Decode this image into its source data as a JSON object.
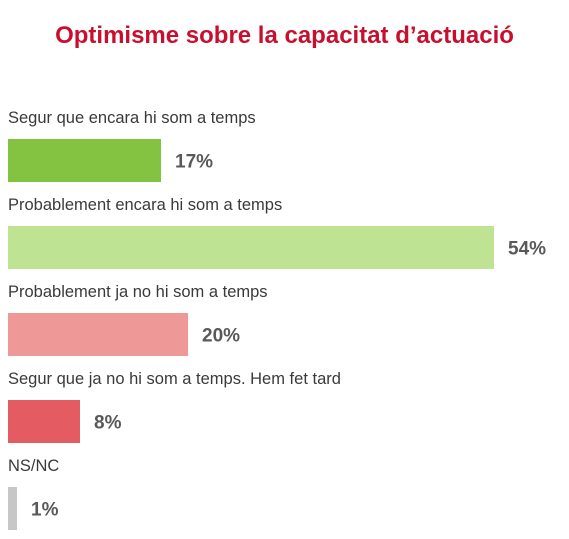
{
  "chart_data": {
    "type": "bar",
    "orientation": "horizontal",
    "title": "Optimisme sobre la capacitat d’actuació",
    "categories": [
      "Segur que encara hi som a temps",
      "Probablement encara hi som a temps",
      "Probablement ja no hi som a temps",
      "Segur que ja no hi som a temps. Hem fet tard",
      "NS/NC"
    ],
    "values": [
      17,
      54,
      20,
      8,
      1
    ],
    "value_labels": [
      "17%",
      "54%",
      "20%",
      "8%",
      "1%"
    ],
    "colors": [
      "#84c241",
      "#bde393",
      "#ee9898",
      "#e45c61",
      "#c7c7c7"
    ],
    "xlim": [
      0,
      54
    ],
    "grid": false,
    "legend": "none"
  }
}
